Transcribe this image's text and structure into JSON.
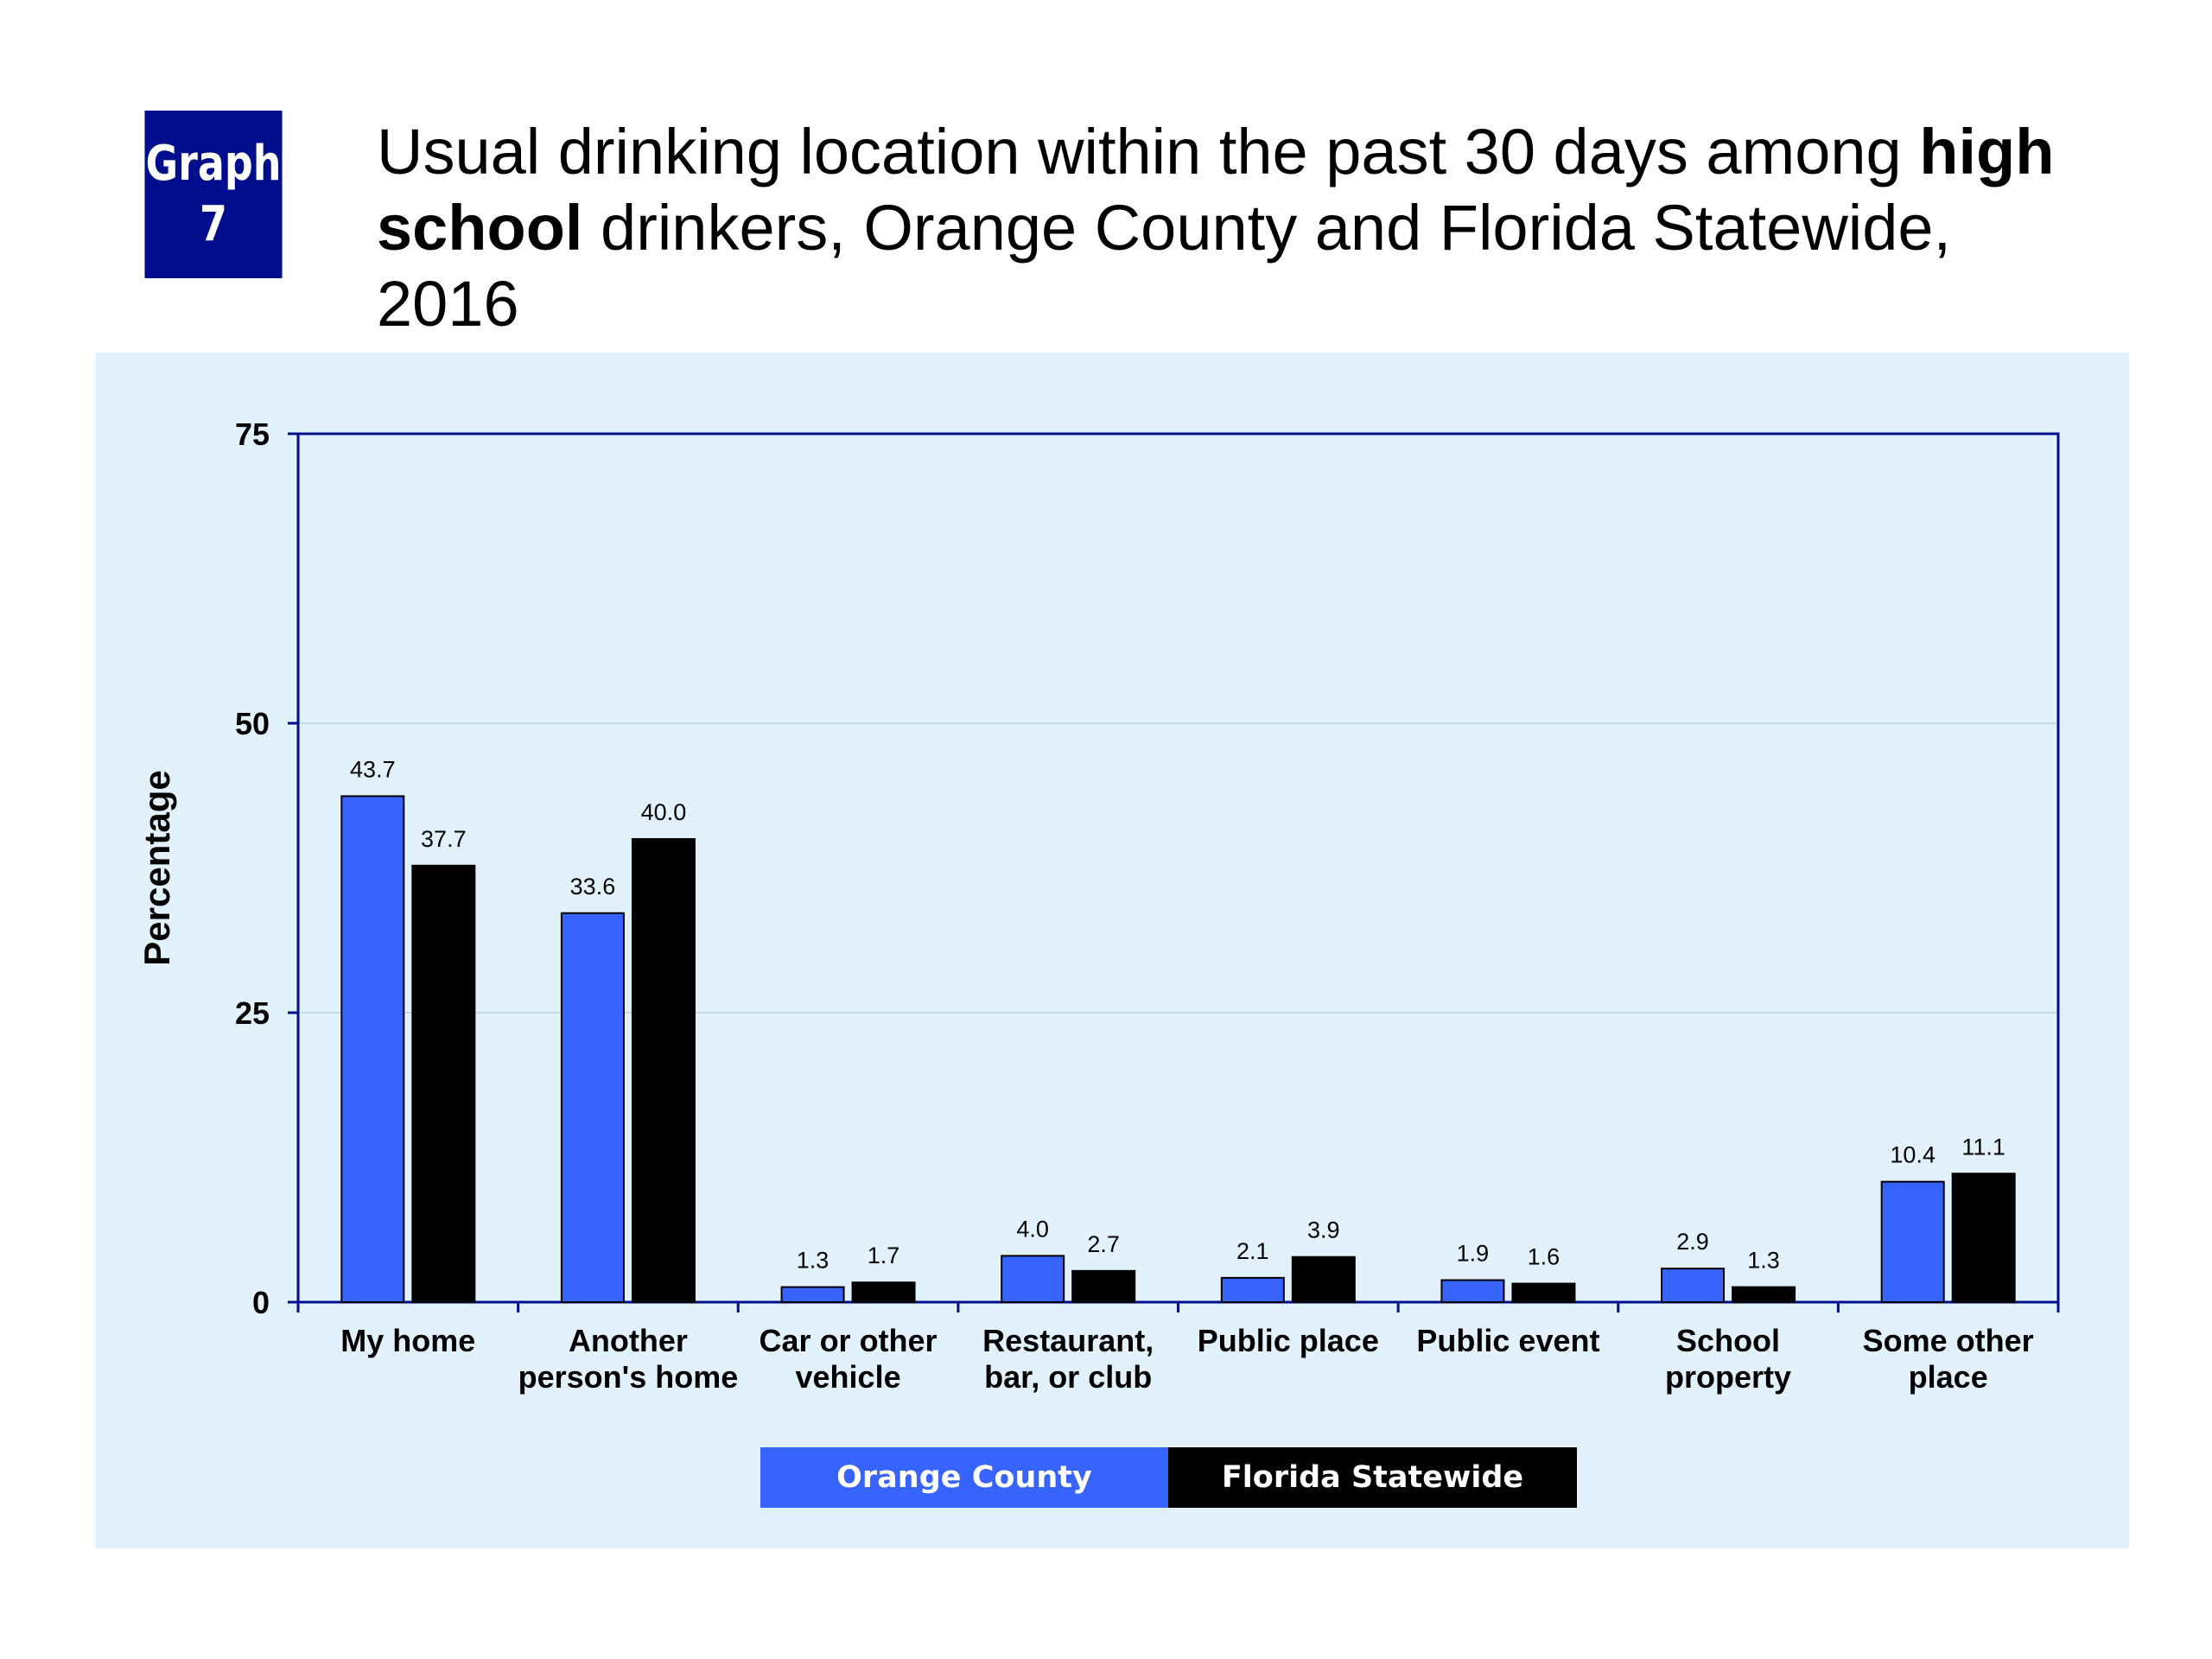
{
  "badge": {
    "line1": "Graph",
    "line2": "7"
  },
  "title": {
    "part1": "Usual drinking location within the past 30 days among ",
    "bold1": "high",
    "bold2": "school",
    "part2": " drinkers, Orange County and Florida Statewide, 2016"
  },
  "colors": {
    "orange_county": "#3763ff",
    "florida_statewide": "#000000",
    "panel": "#e1f2fd",
    "axis": "#000d8c"
  },
  "chart_data": {
    "type": "bar",
    "title": "Usual drinking location within the past 30 days among high school drinkers, Orange County and Florida Statewide, 2016",
    "xlabel": "",
    "ylabel": "Percentage",
    "ylim": [
      0,
      75
    ],
    "yticks": [
      0,
      25,
      50,
      75
    ],
    "grid": true,
    "legend_position": "bottom",
    "categories": [
      [
        "My home"
      ],
      [
        "Another",
        "person's home"
      ],
      [
        "Car or other",
        "vehicle"
      ],
      [
        "Restaurant,",
        "bar, or club"
      ],
      [
        "Public place"
      ],
      [
        "Public event"
      ],
      [
        "School",
        "property"
      ],
      [
        "Some other",
        "place"
      ]
    ],
    "series": [
      {
        "name": "Orange County",
        "values": [
          43.7,
          33.6,
          1.3,
          4.0,
          2.1,
          1.9,
          2.9,
          10.4
        ],
        "labels": [
          "43.7",
          "33.6",
          "1.3",
          "4.0",
          "2.1",
          "1.9",
          "2.9",
          "10.4"
        ]
      },
      {
        "name": "Florida Statewide",
        "values": [
          37.7,
          40.0,
          1.7,
          2.7,
          3.9,
          1.6,
          1.3,
          11.1
        ],
        "labels": [
          "37.7",
          "40.0",
          "1.7",
          "2.7",
          "3.9",
          "1.6",
          "1.3",
          "11.1"
        ]
      }
    ]
  }
}
